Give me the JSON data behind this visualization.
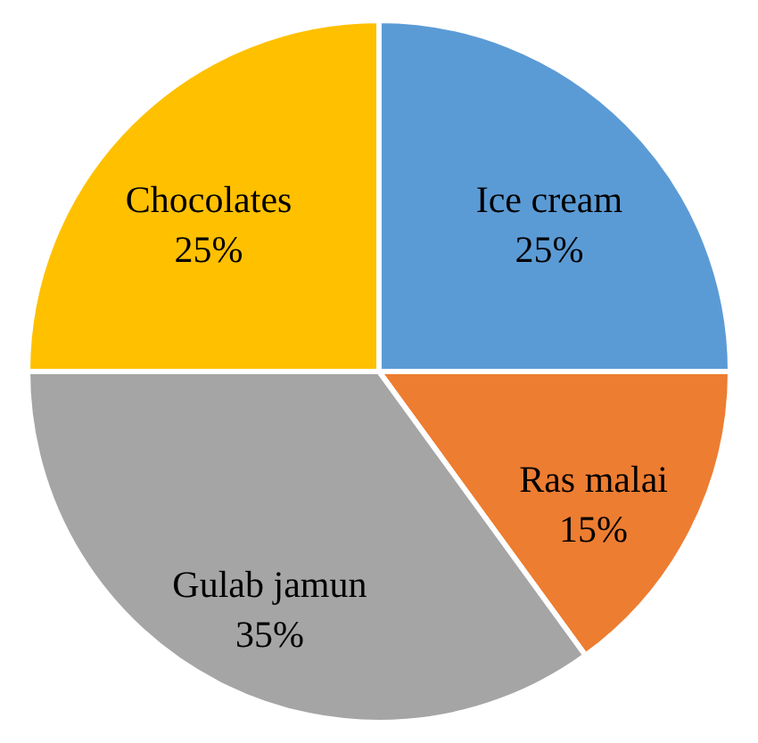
{
  "chart_data": {
    "type": "pie",
    "categories": [
      "Ice cream",
      "Ras malai",
      "Gulab jamun",
      "Chocolates"
    ],
    "values": [
      25,
      15,
      35,
      25
    ],
    "colors": [
      "#5b9bd5",
      "#ed7d31",
      "#a5a5a5",
      "#ffc000"
    ],
    "value_labels": [
      "25%",
      "15%",
      "35%",
      "25%"
    ],
    "legend": false
  }
}
